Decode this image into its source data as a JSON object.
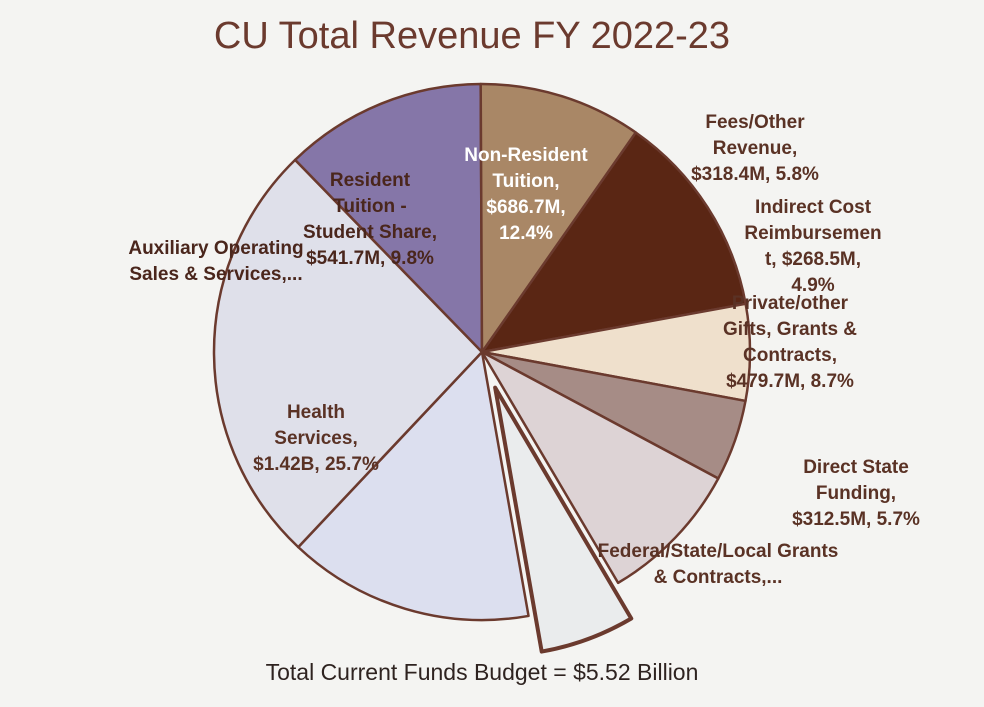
{
  "chart_data": {
    "type": "pie",
    "title": "CU Total Revenue FY 2022-23",
    "footer": "Total Current Funds Budget = $5.52 Billion",
    "slices": [
      {
        "name": "Non-Resident Tuition",
        "label_lines": [
          "Non-Resident",
          "Tuition,",
          "$686.7M,",
          "12.4%"
        ],
        "value": 12.4,
        "amount": "$686.7M",
        "color": "#5a2614",
        "text_style": "light"
      },
      {
        "name": "Fees/Other Revenue",
        "label_lines": [
          "Fees/Other",
          "Revenue,",
          "$318.4M, 5.8%"
        ],
        "value": 5.8,
        "amount": "$318.4M",
        "color": "#efe0cc",
        "text_style": "mid"
      },
      {
        "name": "Indirect Cost Reimbursement",
        "label_lines": [
          "Indirect Cost",
          "Reimbursemen",
          "t, $268.5M,",
          "4.9%"
        ],
        "value": 4.9,
        "amount": "$268.5M",
        "color": "#a68c86",
        "text_style": "mid"
      },
      {
        "name": "Private/other Gifts, Grants & Contracts",
        "label_lines": [
          "Private/other",
          "Gifts, Grants &",
          "Contracts,",
          "$479.7M, 8.7%"
        ],
        "value": 8.7,
        "amount": "$479.7M",
        "color": "#ddd3d5",
        "text_style": "mid"
      },
      {
        "name": "Direct State Funding",
        "label_lines": [
          "Direct State",
          "Funding,",
          "$312.5M, 5.7%"
        ],
        "value": 5.7,
        "amount": "$312.5M",
        "color": "#eaeced",
        "text_style": "mid",
        "exploded": true
      },
      {
        "name": "Federal/State/Local Grants & Contracts",
        "label_lines": [
          "Federal/State/Local Grants",
          "& Contracts,..."
        ],
        "value": 14.8,
        "color": "#dcdfef",
        "text_style": "mid"
      },
      {
        "name": "Health Services",
        "label_lines": [
          "Health",
          "Services,",
          "$1.42B, 25.7%"
        ],
        "value": 25.7,
        "amount": "$1.42B",
        "color": "#dfe0ea",
        "text_style": "mid"
      },
      {
        "name": "Auxiliary Operating Sales & Services",
        "label_lines": [
          "Auxiliary Operating",
          "Sales & Services,..."
        ],
        "value": 12.2,
        "color": "#8576a8",
        "text_style": "dark"
      },
      {
        "name": "Resident Tuition - Student Share",
        "label_lines": [
          "Resident",
          "Tuition -",
          "Student Share,",
          "$541.7M, 9.8%"
        ],
        "value": 9.8,
        "amount": "$541.7M",
        "color": "#a98766",
        "text_style": "dark"
      }
    ],
    "start_angle_deg": -55,
    "stroke_color": "#6b3a2e"
  }
}
